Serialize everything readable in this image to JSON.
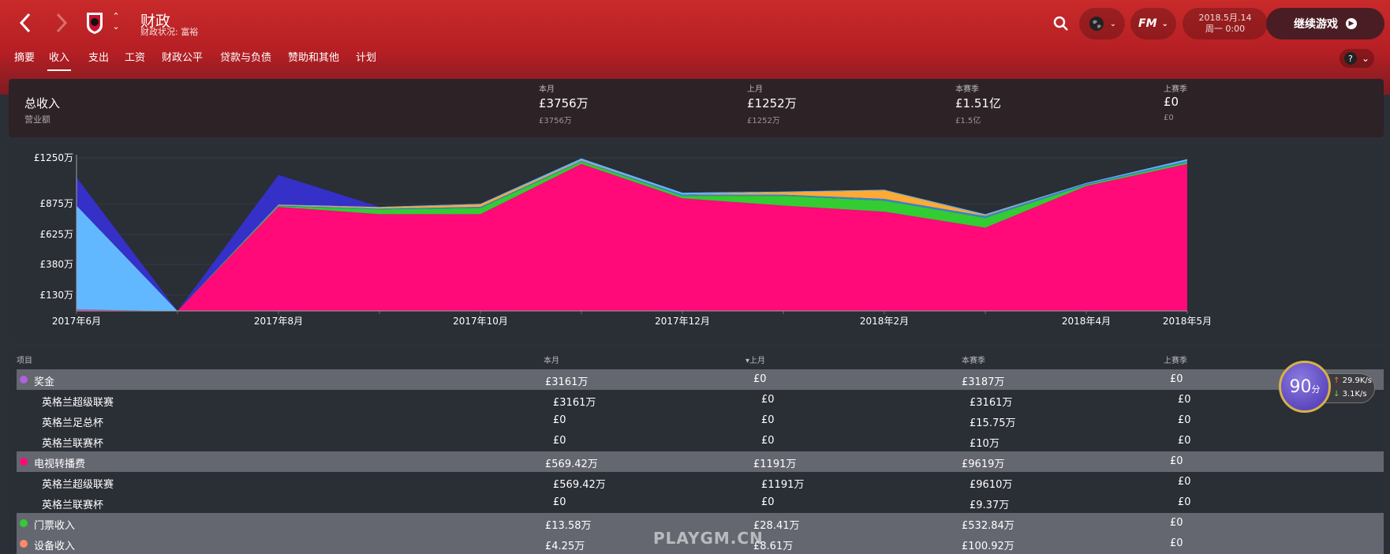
{
  "header": {
    "title": "财政",
    "subtitle": "财政状况: 富裕",
    "date": "2018.5月.14",
    "time": "周一 0:00",
    "continue_label": "继续游戏",
    "fm_label": "FM"
  },
  "tabs": [
    "摘要",
    "收入",
    "支出",
    "工资",
    "财政公平",
    "贷款与负债",
    "赞助和其他",
    "计划"
  ],
  "active_tab": "收入",
  "summary": {
    "title": "总收入",
    "subtitle": "营业额",
    "columns": [
      {
        "label": "本月",
        "value": "£3756万",
        "sub": "£3756万"
      },
      {
        "label": "上月",
        "value": "£1252万",
        "sub": "£1252万"
      },
      {
        "label": "本赛季",
        "value": "£1.51亿",
        "sub": "£1.5亿"
      },
      {
        "label": "上赛季",
        "value": "£0",
        "sub": "£0"
      }
    ]
  },
  "chart_data": {
    "type": "area",
    "x": [
      "2017年6月",
      "2017年7月",
      "2017年8月",
      "2017年9月",
      "2017年10月",
      "2017年11月",
      "2017年12月",
      "2018年1月",
      "2018年2月",
      "2018年3月",
      "2018年4月",
      "2018年5月"
    ],
    "x_tick_labels": [
      "2017年6月",
      "2017年8月",
      "2017年10月",
      "2017年12月",
      "2018年2月",
      "2018年4月",
      "2018年5月"
    ],
    "y_tick_labels": [
      "£1250万",
      "£875万",
      "£625万",
      "£380万",
      "£130万"
    ],
    "y_ticks": [
      1250,
      875,
      625,
      380,
      130
    ],
    "ylim": [
      0,
      1250
    ],
    "stacked": true,
    "series": [
      {
        "color": "#ff0a78",
        "values": [
          10,
          0,
          850,
          790,
          790,
          1200,
          920,
          860,
          810,
          680,
          1020,
          1200
        ]
      },
      {
        "color": "#33cc33",
        "values": [
          0,
          0,
          5,
          40,
          50,
          20,
          20,
          80,
          90,
          80,
          10,
          15
        ]
      },
      {
        "color": "#3a7fe0",
        "values": [
          0,
          0,
          5,
          5,
          10,
          5,
          10,
          10,
          15,
          15,
          10,
          10
        ]
      },
      {
        "color": "#ffaa33",
        "values": [
          0,
          0,
          5,
          10,
          20,
          5,
          0,
          20,
          70,
          5,
          0,
          0
        ]
      },
      {
        "color": "#62b8ff",
        "values": [
          850,
          0,
          5,
          5,
          5,
          15,
          15,
          5,
          5,
          10,
          5,
          15
        ]
      },
      {
        "color": "#3530c8",
        "values": [
          230,
          0,
          240,
          0,
          0,
          0,
          0,
          0,
          0,
          0,
          0,
          0
        ]
      }
    ]
  },
  "table": {
    "headers": [
      "项目",
      "本月",
      "上月",
      "本赛季",
      "上赛季"
    ],
    "rows": [
      {
        "group": true,
        "color": "#b060e0",
        "name": "奖金",
        "cells": [
          "£3161万",
          "£0",
          "£3187万",
          "£0"
        ]
      },
      {
        "group": false,
        "name": "英格兰超级联赛",
        "cells": [
          "£3161万",
          "£0",
          "£3161万",
          "£0"
        ]
      },
      {
        "group": false,
        "name": "英格兰足总杯",
        "cells": [
          "£0",
          "£0",
          "£15.75万",
          "£0"
        ]
      },
      {
        "group": false,
        "name": "英格兰联赛杯",
        "cells": [
          "£0",
          "£0",
          "£10万",
          "£0"
        ]
      },
      {
        "group": true,
        "color": "#ff0a78",
        "name": "电视转播费",
        "cells": [
          "£569.42万",
          "£1191万",
          "£9619万",
          "£0"
        ]
      },
      {
        "group": false,
        "name": "英格兰超级联赛",
        "cells": [
          "£569.42万",
          "£1191万",
          "£9610万",
          "£0"
        ]
      },
      {
        "group": false,
        "name": "英格兰联赛杯",
        "cells": [
          "£0",
          "£0",
          "£9.37万",
          "£0"
        ]
      },
      {
        "group": true,
        "color": "#33cc33",
        "name": "门票收入",
        "cells": [
          "£13.58万",
          "£28.41万",
          "£532.84万",
          "£0"
        ]
      },
      {
        "group": true,
        "color": "#ff8866",
        "name": "设备收入",
        "cells": [
          "£4.25万",
          "£8.61万",
          "£100.92万",
          "£0"
        ]
      }
    ]
  },
  "overlay": {
    "score": "90",
    "score_unit": "分",
    "upload": "29.9K/s",
    "download": "3.1K/s",
    "watermark": "PLAYGM.CN"
  },
  "colors": {
    "header_red": "#c92a2a",
    "accent_pink": "#ff0a78"
  }
}
